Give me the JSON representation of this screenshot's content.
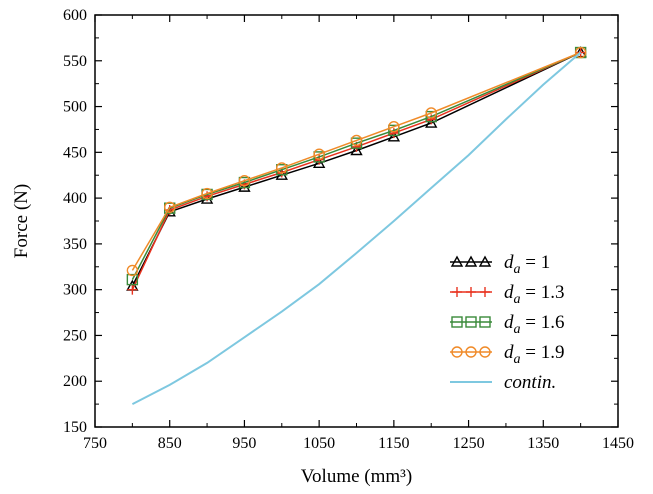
{
  "chart_data": {
    "type": "line",
    "xlabel": "Volume (mm³)",
    "ylabel": "Force (N)",
    "xlim": [
      750,
      1450
    ],
    "ylim": [
      150,
      600
    ],
    "xticks": [
      750,
      850,
      950,
      1050,
      1150,
      1250,
      1350,
      1450
    ],
    "yticks": [
      150,
      200,
      250,
      300,
      350,
      400,
      450,
      500,
      550,
      600
    ],
    "grid": false,
    "legend_position": "bottom-right",
    "series": [
      {
        "name": "d_a = 1",
        "legend_main": "d",
        "legend_sub": "a",
        "legend_rest": " = 1",
        "color": "#000000",
        "marker": "triangle",
        "x": [
          800,
          850,
          900,
          950,
          1000,
          1050,
          1100,
          1150,
          1200,
          1400
        ],
        "y": [
          304,
          385,
          399,
          412,
          425,
          438,
          452,
          467,
          482,
          559
        ]
      },
      {
        "name": "d_a = 1.3",
        "legend_main": "d",
        "legend_sub": "a",
        "legend_rest": " = 1.3",
        "color": "#e8321e",
        "marker": "plus",
        "x": [
          800,
          850,
          900,
          950,
          1000,
          1050,
          1100,
          1150,
          1200,
          1400
        ],
        "y": [
          300,
          387,
          402,
          415,
          428,
          442,
          456,
          471,
          486,
          559
        ]
      },
      {
        "name": "d_a = 1.6",
        "legend_main": "d",
        "legend_sub": "a",
        "legend_rest": " = 1.6",
        "color": "#3a8a3a",
        "marker": "square",
        "x": [
          800,
          850,
          900,
          950,
          1000,
          1050,
          1100,
          1150,
          1200,
          1400
        ],
        "y": [
          311,
          389,
          404,
          417,
          431,
          445,
          460,
          474,
          489,
          559
        ]
      },
      {
        "name": "d_a = 1.9",
        "legend_main": "d",
        "legend_sub": "a",
        "legend_rest": " = 1.9",
        "color": "#f08a28",
        "marker": "circle",
        "x": [
          800,
          850,
          900,
          950,
          1000,
          1050,
          1100,
          1150,
          1200,
          1400
        ],
        "y": [
          321,
          390,
          405,
          419,
          433,
          448,
          463,
          478,
          493,
          559
        ]
      },
      {
        "name": "contin.",
        "legend_main": "contin.",
        "legend_sub": "",
        "legend_rest": "",
        "color": "#7ec8e0",
        "marker": "none",
        "x": [
          800,
          850,
          900,
          950,
          1000,
          1050,
          1100,
          1150,
          1200,
          1250,
          1300,
          1350,
          1400
        ],
        "y": [
          175,
          196,
          220,
          248,
          276,
          306,
          340,
          375,
          411,
          447,
          486,
          524,
          559
        ]
      }
    ]
  }
}
